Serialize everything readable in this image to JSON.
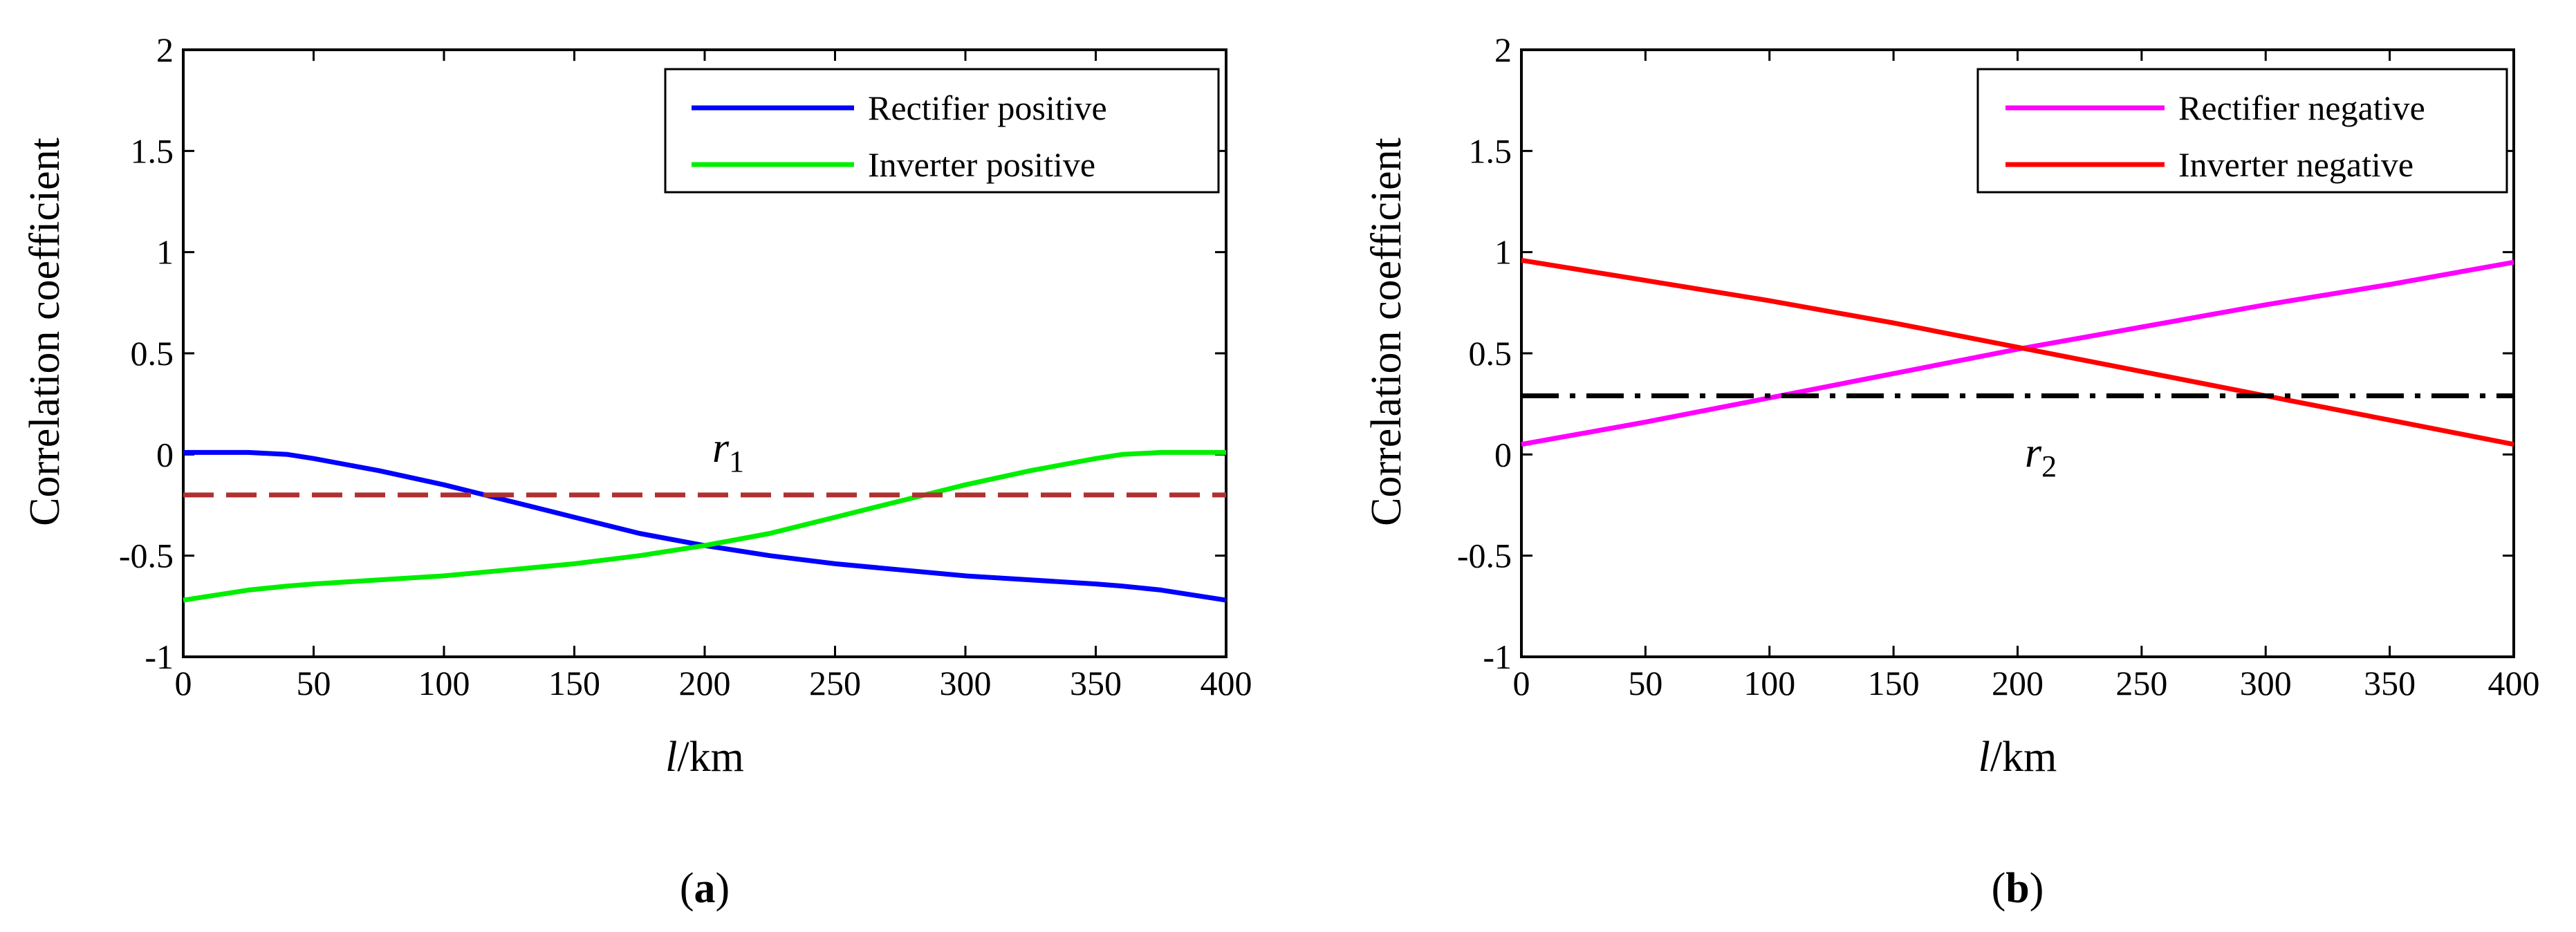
{
  "chart_data": [
    {
      "type": "line",
      "panel": "a",
      "panel_label": "(a)",
      "panel_label_parts": {
        "open": "(",
        "letter": "a",
        "close": ")"
      },
      "xlabel": "l/km",
      "xlabel_parts": {
        "italic": "l",
        "rest": "/km"
      },
      "ylabel": "Correlation coefficient",
      "xlim": [
        0,
        400
      ],
      "ylim": [
        -1,
        2
      ],
      "xticks": [
        0,
        50,
        100,
        150,
        200,
        250,
        300,
        350,
        400
      ],
      "yticks": [
        -1,
        -0.5,
        0,
        0.5,
        1,
        1.5,
        2
      ],
      "ytick_labels": [
        "-1",
        "-0.5",
        "0",
        "0.5",
        "1",
        "1.5",
        "2"
      ],
      "x": [
        0,
        25,
        40,
        50,
        75,
        100,
        125,
        150,
        175,
        200,
        225,
        250,
        275,
        300,
        325,
        350,
        360,
        375,
        400
      ],
      "series": [
        {
          "name": "Rectifier positive",
          "color": "#0000ff",
          "values": [
            0.01,
            0.01,
            0.0,
            -0.02,
            -0.08,
            -0.15,
            -0.23,
            -0.31,
            -0.39,
            -0.45,
            -0.5,
            -0.54,
            -0.57,
            -0.6,
            -0.62,
            -0.64,
            -0.65,
            -0.67,
            -0.72
          ]
        },
        {
          "name": "Inverter positive",
          "color": "#00ee00",
          "values": [
            -0.72,
            -0.67,
            -0.65,
            -0.64,
            -0.62,
            -0.6,
            -0.57,
            -0.54,
            -0.5,
            -0.45,
            -0.39,
            -0.31,
            -0.23,
            -0.15,
            -0.08,
            -0.02,
            0.0,
            0.01,
            0.01
          ]
        }
      ],
      "threshold": {
        "name": "r1",
        "symbol": "r",
        "subscript": "1",
        "value": -0.2,
        "color": "#b03030",
        "style": "dashed"
      },
      "legend": "top-right"
    },
    {
      "type": "line",
      "panel": "b",
      "panel_label": "(b)",
      "panel_label_parts": {
        "open": "(",
        "letter": "b",
        "close": ")"
      },
      "xlabel": "l/km",
      "xlabel_parts": {
        "italic": "l",
        "rest": "/km"
      },
      "ylabel": "Correlation coefficient",
      "xlim": [
        0,
        400
      ],
      "ylim": [
        -1,
        2
      ],
      "xticks": [
        0,
        50,
        100,
        150,
        200,
        250,
        300,
        350,
        400
      ],
      "yticks": [
        -1,
        -0.5,
        0,
        0.5,
        1,
        1.5,
        2
      ],
      "ytick_labels": [
        "-1",
        "-0.5",
        "0",
        "0.5",
        "1",
        "1.5",
        "2"
      ],
      "x": [
        0,
        50,
        100,
        150,
        200,
        250,
        300,
        350,
        400
      ],
      "series": [
        {
          "name": "Rectifier negative",
          "color": "#ff00ff",
          "values": [
            0.05,
            0.16,
            0.28,
            0.4,
            0.52,
            0.63,
            0.74,
            0.84,
            0.95
          ]
        },
        {
          "name": "Inverter negative",
          "color": "#ff0000",
          "values": [
            0.96,
            0.86,
            0.76,
            0.65,
            0.53,
            0.41,
            0.29,
            0.17,
            0.05
          ]
        }
      ],
      "threshold": {
        "name": "r2",
        "symbol": "r",
        "subscript": "2",
        "value": 0.29,
        "color": "#000000",
        "style": "dashdot"
      },
      "legend": "top-right"
    }
  ]
}
